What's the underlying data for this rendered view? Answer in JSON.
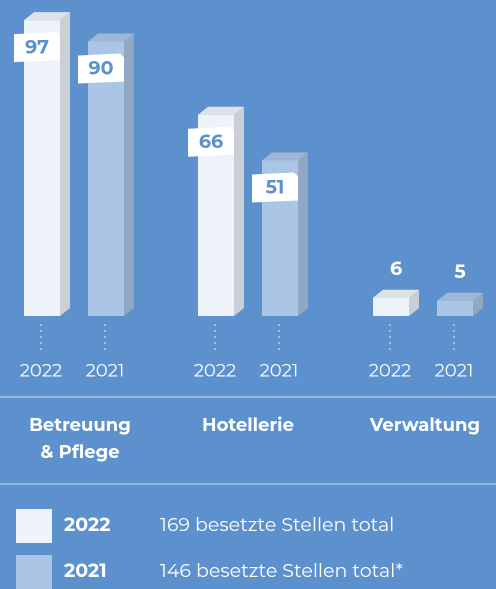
{
  "chart_data": {
    "type": "bar",
    "categories": [
      "Betreuung & Pflege",
      "Hotellerie",
      "Verwaltung"
    ],
    "series": [
      {
        "name": "2022",
        "color": "#eef3fa",
        "values": [
          97,
          66,
          6
        ],
        "legend_text": "169 besetzte Stellen total"
      },
      {
        "name": "2021",
        "color": "#abc5e5",
        "values": [
          90,
          51,
          5
        ],
        "legend_text": "146 besetzte Stellen total*"
      }
    ]
  }
}
